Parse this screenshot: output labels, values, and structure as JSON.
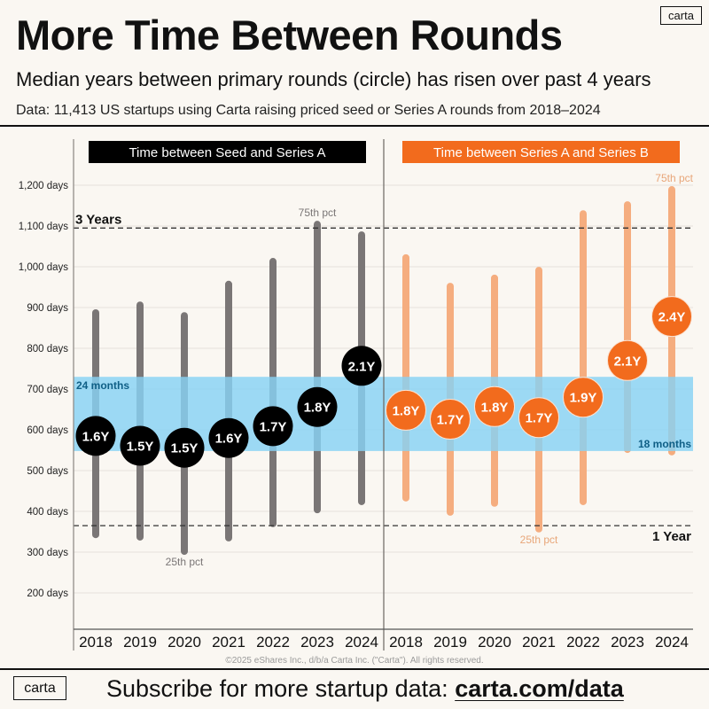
{
  "header": {
    "title": "More Time Between Rounds",
    "subtitle": "Median years between primary rounds (circle) has risen over past 4 years",
    "note": "Data: 11,413 US startups using Carta raising priced seed or Series A rounds from 2018–2024",
    "logo": "carta"
  },
  "footer": {
    "copyright": "©2025 eShares Inc., d/b/a Carta Inc. (\"Carta\"). All rights reserved.",
    "logo": "carta",
    "cta_text": "Subscribe for more startup data: ",
    "cta_link": "carta.com/data"
  },
  "colors": {
    "background": "#faf7f2",
    "seed_panel_header": "#000000",
    "seriesb_panel_header": "#f26b1d",
    "seed_bar": "#7a7676",
    "seed_circle": "#000000",
    "seriesb_bar": "#f5ad7f",
    "seriesb_circle": "#f26b1d",
    "band": "#87d2f4",
    "band_label": "#0f5f86",
    "pct_label_seed": "#7a7676",
    "pct_label_seriesb": "#e8a679"
  },
  "chart_data": {
    "type": "range-dot",
    "title": "More Time Between Rounds",
    "ylabel": "days",
    "ylim": [
      110,
      1290
    ],
    "yticks": [
      200,
      300,
      400,
      500,
      600,
      700,
      800,
      900,
      1000,
      1100,
      1200
    ],
    "ytick_labels": [
      "200 days",
      "300 days",
      "400 days",
      "500 days",
      "600 days",
      "700 days",
      "800 days",
      "900 days",
      "1,000 days",
      "1,100 days",
      "1,200 days"
    ],
    "grid": true,
    "panels": [
      {
        "name": "Time between Seed and Series A",
        "categories": [
          "2018",
          "2019",
          "2020",
          "2021",
          "2022",
          "2023",
          "2024"
        ],
        "p25": [
          343,
          337,
          302,
          335,
          370,
          404,
          424
        ],
        "p75": [
          887,
          906,
          880,
          957,
          1013,
          1104,
          1078
        ],
        "median_days": [
          585,
          561,
          556,
          580,
          609,
          656,
          757
        ],
        "median_labels": [
          "1.6Y",
          "1.5Y",
          "1.5Y",
          "1.6Y",
          "1.7Y",
          "1.8Y",
          "2.1Y"
        ],
        "annotations": [
          {
            "text": "75th pct",
            "category": "2023",
            "at": "p75"
          },
          {
            "text": "25th pct",
            "category": "2020",
            "at": "p25"
          }
        ]
      },
      {
        "name": "Time between Series A and Series B",
        "categories": [
          "2018",
          "2019",
          "2020",
          "2021",
          "2022",
          "2023",
          "2024"
        ],
        "p25": [
          433,
          398,
          420,
          357,
          424,
          552,
          546
        ],
        "p75": [
          1022,
          952,
          972,
          991,
          1130,
          1152,
          1189
        ],
        "median_days": [
          648,
          626,
          657,
          630,
          680,
          770,
          878
        ],
        "median_labels": [
          "1.8Y",
          "1.7Y",
          "1.8Y",
          "1.7Y",
          "1.9Y",
          "2.1Y",
          "2.4Y"
        ],
        "annotations": [
          {
            "text": "75th pct",
            "category": "2024",
            "at": "p75"
          },
          {
            "text": "25th pct",
            "category": "2021",
            "at": "p25"
          }
        ]
      }
    ],
    "reference_lines": [
      {
        "value": 1095,
        "label": "3 Years",
        "label_side": "left"
      },
      {
        "value": 365,
        "label": "1 Year",
        "label_side": "right"
      }
    ],
    "band": {
      "from": 548,
      "to": 730,
      "top_label": "24 months",
      "bottom_label": "18 months"
    }
  }
}
